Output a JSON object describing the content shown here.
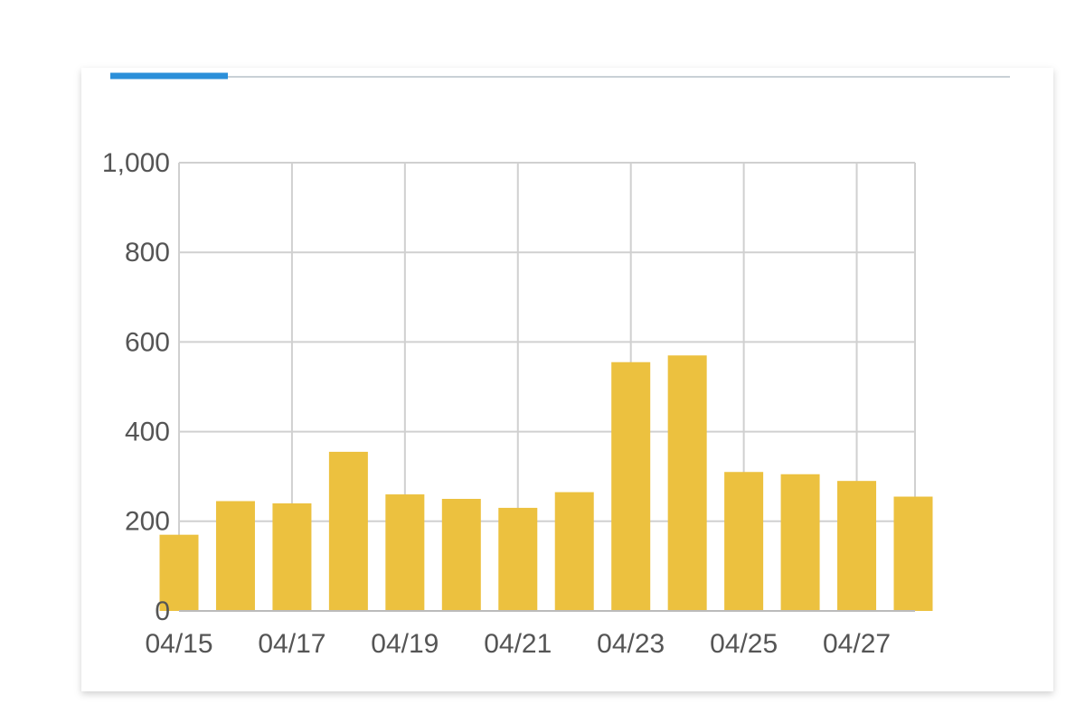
{
  "chart_data": {
    "type": "bar",
    "categories": [
      "04/15",
      null,
      "04/17",
      null,
      "04/19",
      null,
      "04/21",
      null,
      "04/23",
      null,
      "04/25",
      null,
      "04/27",
      null
    ],
    "values": [
      170,
      245,
      240,
      355,
      260,
      250,
      230,
      265,
      555,
      570,
      310,
      305,
      290,
      255
    ],
    "color": "#ecc13f",
    "ylim": [
      0,
      1000
    ],
    "yticks": [
      0,
      200,
      400,
      600,
      800,
      {
        "value": 1000,
        "label": "1,000"
      }
    ],
    "grid": true
  }
}
